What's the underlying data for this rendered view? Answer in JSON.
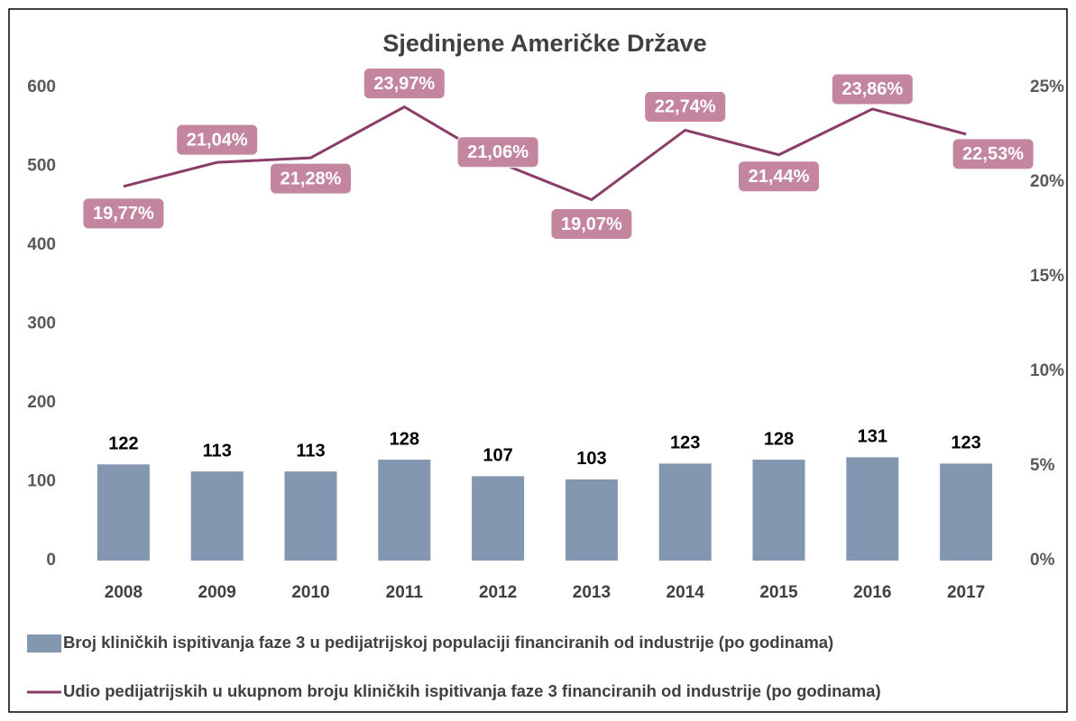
{
  "chart_data": {
    "type": "combo",
    "title": "Sjedinjene Američke Države",
    "categories": [
      "2008",
      "2009",
      "2010",
      "2011",
      "2012",
      "2013",
      "2014",
      "2015",
      "2016",
      "2017"
    ],
    "series": [
      {
        "name": "Broj kliničkih ispitivanja faze 3 u pedijatrijskoj populaciji financiranih od industrije (po godinama)",
        "type": "bar",
        "color": "#8497b0",
        "values": [
          122,
          113,
          113,
          128,
          107,
          103,
          123,
          128,
          131,
          123
        ]
      },
      {
        "name": "Udio pedijatrijskih u ukupnom broju kliničkih ispitivanja faze 3 financiranih od industrije (po godinama)",
        "type": "line",
        "color": "#8b3d6a",
        "axis": "y2",
        "values": [
          19.77,
          21.04,
          21.28,
          23.97,
          21.06,
          19.07,
          22.74,
          21.44,
          23.86,
          22.53
        ],
        "value_labels": [
          "19,77%",
          "21,04%",
          "21,28%",
          "23,97%",
          "21,06%",
          "19,07%",
          "22,74%",
          "21,44%",
          "23,86%",
          "22,53%"
        ]
      }
    ],
    "ylim": [
      0,
      600
    ],
    "yticks": [
      0,
      100,
      200,
      300,
      400,
      500,
      600
    ],
    "y2lim": [
      0,
      25
    ],
    "y2ticks": [
      {
        "value": 0,
        "label": "0%"
      },
      {
        "value": 5,
        "label": "5%"
      },
      {
        "value": 10,
        "label": "10%"
      },
      {
        "value": 15,
        "label": "15%"
      },
      {
        "value": 20,
        "label": "20%"
      },
      {
        "value": 25,
        "label": "25%"
      }
    ],
    "grid": false
  }
}
